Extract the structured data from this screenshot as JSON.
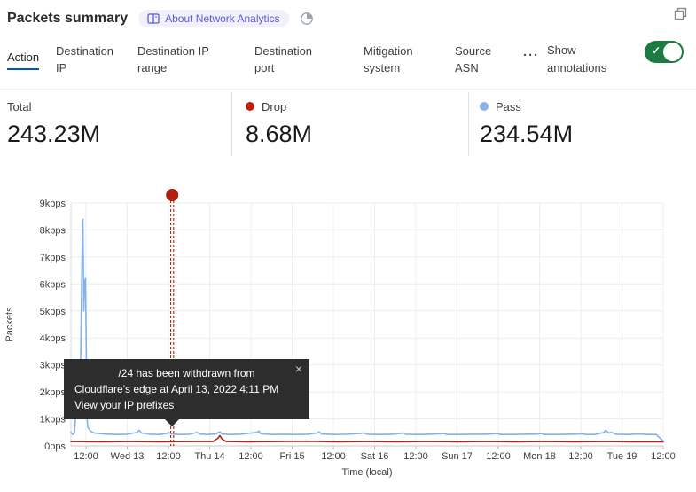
{
  "header": {
    "title": "Packets summary",
    "about_badge": "About Network Analytics"
  },
  "tabs": {
    "items": [
      "Action",
      "Destination IP",
      "Destination IP range",
      "Destination port",
      "Mitigation system",
      "Source ASN"
    ],
    "active": "Action",
    "more_label": "···",
    "show_annotations_label": "Show annotations",
    "toggle_on": true,
    "active_underline_color": "#0051c3",
    "toggle_color": "#1b7b42"
  },
  "stats": {
    "total": {
      "label": "Total",
      "value": "243.23M"
    },
    "drop": {
      "label": "Drop",
      "value": "8.68M",
      "color": "#c21e14"
    },
    "pass": {
      "label": "Pass",
      "value": "234.54M",
      "color": "#8ab3e8"
    }
  },
  "annotation_tooltip": {
    "line1": "/24 has been withdrawn from",
    "line2": "Cloudflare's edge at April 13, 2022 4:11 PM",
    "link": "View your IP prefixes",
    "close": "×"
  },
  "chart_data": {
    "type": "line",
    "title": "Packets summary",
    "xlabel": "Time (local)",
    "ylabel": "Packets",
    "unit": "kpps",
    "ylim": [
      0,
      9
    ],
    "grid": true,
    "x_ticks": [
      "12:00",
      "Wed 13",
      "12:00",
      "Thu 14",
      "12:00",
      "Fri 15",
      "12:00",
      "Sat 16",
      "12:00",
      "Sun 17",
      "12:00",
      "Mon 18",
      "12:00",
      "Tue 19",
      "12:00"
    ],
    "y_ticks": [
      "0pps",
      "1kpps",
      "2kpps",
      "3kpps",
      "4kpps",
      "5kpps",
      "6kpps",
      "7kpps",
      "8kpps",
      "9kpps"
    ],
    "x_encoding": "fraction of plotted time range (12h between ticks), values in kpps",
    "series": [
      {
        "name": "Drop",
        "color": "#a5291b",
        "points": [
          [
            0.0,
            0.16
          ],
          [
            0.05,
            0.15
          ],
          [
            0.1,
            0.16
          ],
          [
            0.15,
            0.15
          ],
          [
            0.2,
            0.16
          ],
          [
            0.24,
            0.16
          ],
          [
            0.248,
            0.28
          ],
          [
            0.2515,
            0.38
          ],
          [
            0.255,
            0.26
          ],
          [
            0.262,
            0.16
          ],
          [
            0.3,
            0.15
          ],
          [
            0.35,
            0.16
          ],
          [
            0.4,
            0.17
          ],
          [
            0.45,
            0.15
          ],
          [
            0.5,
            0.16
          ],
          [
            0.55,
            0.15
          ],
          [
            0.6,
            0.16
          ],
          [
            0.65,
            0.15
          ],
          [
            0.7,
            0.16
          ],
          [
            0.75,
            0.15
          ],
          [
            0.8,
            0.16
          ],
          [
            0.85,
            0.15
          ],
          [
            0.9,
            0.16
          ],
          [
            0.95,
            0.15
          ],
          [
            1.0,
            0.15
          ]
        ]
      },
      {
        "name": "Pass",
        "color": "#85b1e8",
        "points": [
          [
            0.0,
            0.5
          ],
          [
            0.003,
            0.42
          ],
          [
            0.006,
            0.48
          ],
          [
            0.0075,
            0.95
          ],
          [
            0.0105,
            2.2
          ],
          [
            0.0135,
            2.0
          ],
          [
            0.0165,
            3.2
          ],
          [
            0.0187,
            7.0
          ],
          [
            0.0202,
            8.4
          ],
          [
            0.0217,
            5.0
          ],
          [
            0.0232,
            6.1
          ],
          [
            0.0247,
            6.2
          ],
          [
            0.0269,
            1.2
          ],
          [
            0.0284,
            0.7
          ],
          [
            0.0329,
            0.55
          ],
          [
            0.0389,
            0.48
          ],
          [
            0.055,
            0.44
          ],
          [
            0.075,
            0.42
          ],
          [
            0.095,
            0.43
          ],
          [
            0.112,
            0.5
          ],
          [
            0.115,
            0.58
          ],
          [
            0.119,
            0.48
          ],
          [
            0.135,
            0.43
          ],
          [
            0.15,
            0.42
          ],
          [
            0.162,
            0.46
          ],
          [
            0.165,
            0.5
          ],
          [
            0.169,
            0.44
          ],
          [
            0.185,
            0.42
          ],
          [
            0.2,
            0.43
          ],
          [
            0.21,
            0.48
          ],
          [
            0.213,
            0.5
          ],
          [
            0.217,
            0.44
          ],
          [
            0.23,
            0.42
          ],
          [
            0.245,
            0.44
          ],
          [
            0.249,
            0.5
          ],
          [
            0.2515,
            0.52
          ],
          [
            0.255,
            0.44
          ],
          [
            0.27,
            0.42
          ],
          [
            0.285,
            0.43
          ],
          [
            0.314,
            0.5
          ],
          [
            0.317,
            0.55
          ],
          [
            0.321,
            0.45
          ],
          [
            0.34,
            0.42
          ],
          [
            0.36,
            0.43
          ],
          [
            0.38,
            0.42
          ],
          [
            0.4,
            0.43
          ],
          [
            0.416,
            0.48
          ],
          [
            0.419,
            0.52
          ],
          [
            0.423,
            0.44
          ],
          [
            0.445,
            0.42
          ],
          [
            0.465,
            0.43
          ],
          [
            0.49,
            0.46
          ],
          [
            0.494,
            0.48
          ],
          [
            0.5,
            0.43
          ],
          [
            0.52,
            0.42
          ],
          [
            0.54,
            0.43
          ],
          [
            0.558,
            0.46
          ],
          [
            0.561,
            0.48
          ],
          [
            0.565,
            0.43
          ],
          [
            0.585,
            0.42
          ],
          [
            0.605,
            0.43
          ],
          [
            0.626,
            0.45
          ],
          [
            0.629,
            0.46
          ],
          [
            0.635,
            0.42
          ],
          [
            0.655,
            0.42
          ],
          [
            0.675,
            0.43
          ],
          [
            0.7,
            0.43
          ],
          [
            0.716,
            0.45
          ],
          [
            0.719,
            0.46
          ],
          [
            0.725,
            0.42
          ],
          [
            0.745,
            0.42
          ],
          [
            0.765,
            0.43
          ],
          [
            0.79,
            0.44
          ],
          [
            0.793,
            0.46
          ],
          [
            0.8,
            0.42
          ],
          [
            0.82,
            0.42
          ],
          [
            0.84,
            0.43
          ],
          [
            0.858,
            0.44
          ],
          [
            0.861,
            0.45
          ],
          [
            0.87,
            0.42
          ],
          [
            0.885,
            0.42
          ],
          [
            0.9,
            0.5
          ],
          [
            0.903,
            0.58
          ],
          [
            0.908,
            0.48
          ],
          [
            0.913,
            0.5
          ],
          [
            0.92,
            0.43
          ],
          [
            0.94,
            0.42
          ],
          [
            0.958,
            0.44
          ],
          [
            0.975,
            0.42
          ],
          [
            0.988,
            0.42
          ],
          [
            0.995,
            0.28
          ],
          [
            1.0,
            0.18
          ]
        ]
      }
    ],
    "annotation": {
      "x": 0.171,
      "color": "#b01e0f",
      "label": "/24 has been withdrawn from Cloudflare's edge at April 13, 2022 4:11 PM"
    }
  }
}
